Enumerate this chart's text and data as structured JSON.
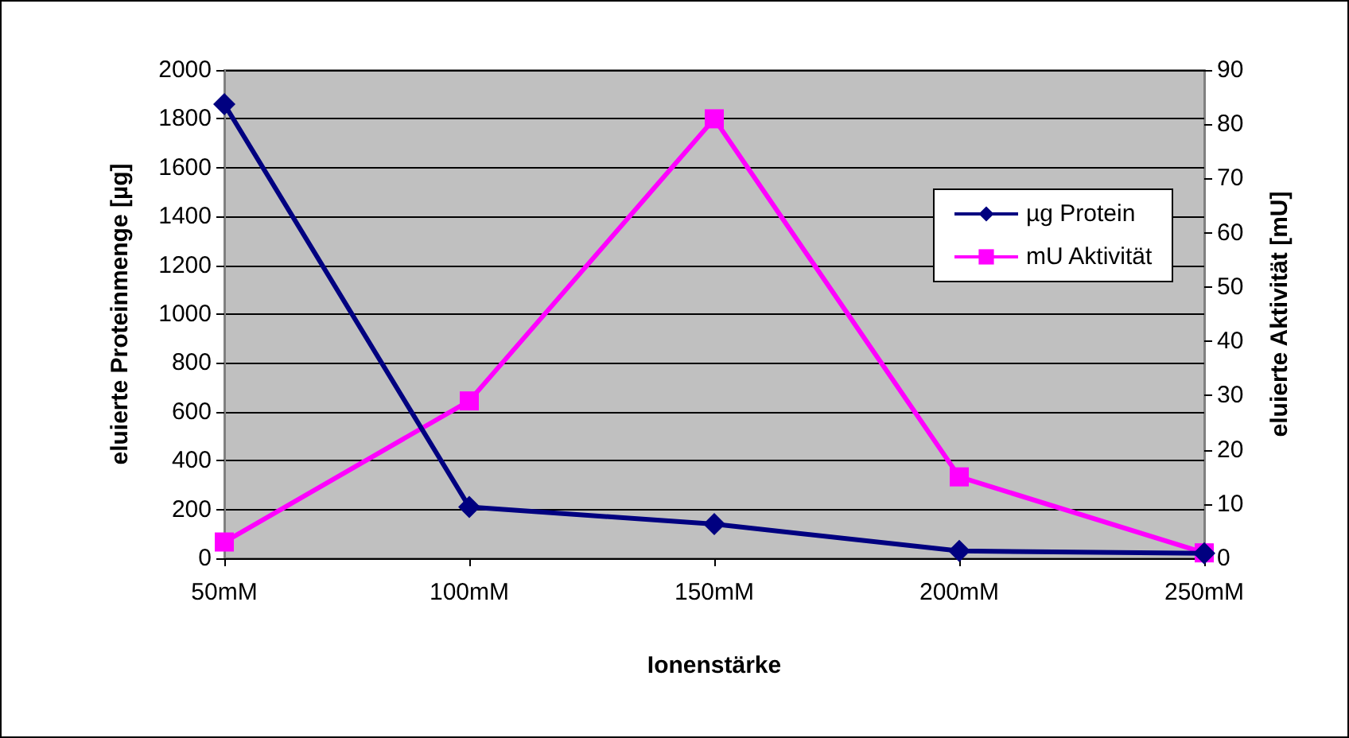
{
  "chart_data": {
    "type": "line",
    "xlabel": "Ionenstärke",
    "ylabel": "eluierte Proteinmenge [µg]",
    "y2label": "eluierte Aktivität [mU]",
    "categories": [
      "50mM",
      "100mM",
      "150mM",
      "200mM",
      "250mM"
    ],
    "series": [
      {
        "name": "µg Protein",
        "color": "#000080",
        "marker": "diamond",
        "values": [
          1860,
          210,
          140,
          30,
          20
        ]
      },
      {
        "name": "mU Aktivität",
        "color": "#ff00ff",
        "marker": "square",
        "axis": "y2",
        "values": [
          3,
          29,
          81,
          15,
          1
        ]
      }
    ],
    "ylim": [
      0,
      2000
    ],
    "yticks": [
      0,
      200,
      400,
      600,
      800,
      1000,
      1200,
      1400,
      1600,
      1800,
      2000
    ],
    "y2lim": [
      0,
      90
    ],
    "y2ticks": [
      0,
      10,
      20,
      30,
      40,
      50,
      60,
      70,
      80,
      90
    ],
    "grid": "y",
    "legend": "right",
    "line_style": "solid"
  }
}
